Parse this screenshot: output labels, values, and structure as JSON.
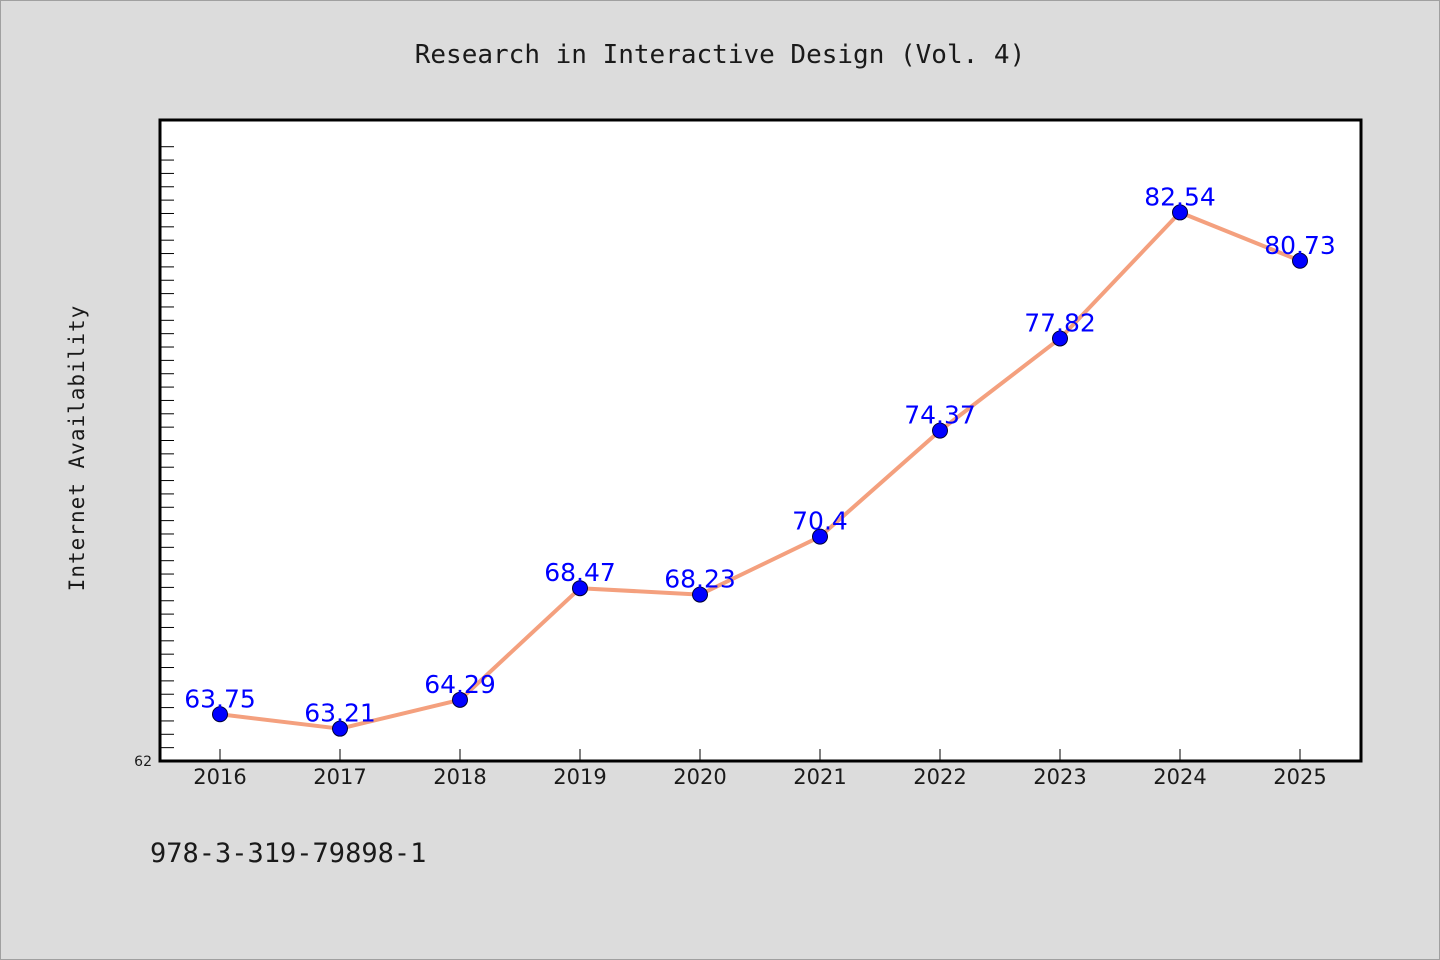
{
  "chart_data": {
    "type": "line",
    "title": "Research in Interactive Design (Vol. 4)",
    "xlabel": "",
    "ylabel": "Internet Availability",
    "categories": [
      "2016",
      "2017",
      "2018",
      "2019",
      "2020",
      "2021",
      "2022",
      "2023",
      "2024",
      "2025"
    ],
    "series": [
      {
        "values": [
          63.75,
          63.21,
          64.29,
          68.47,
          68.23,
          70.4,
          74.37,
          77.82,
          82.54,
          80.73
        ],
        "labels": [
          "63.75",
          "63.21",
          "64.29",
          "68.47",
          "68.23",
          "70.4",
          "74.37",
          "77.82",
          "82.54",
          "80.73"
        ]
      }
    ],
    "ylim": [
      62,
      86
    ],
    "y_tick_labels": [
      "62"
    ],
    "grid": false,
    "colors": {
      "line": "#f4a07e",
      "marker": "#0000ff",
      "label": "#0000ff",
      "background": "#dcdcdc",
      "plot_bg": "#ffffff"
    }
  },
  "footer": {
    "isbn": "978-3-319-79898-1"
  }
}
